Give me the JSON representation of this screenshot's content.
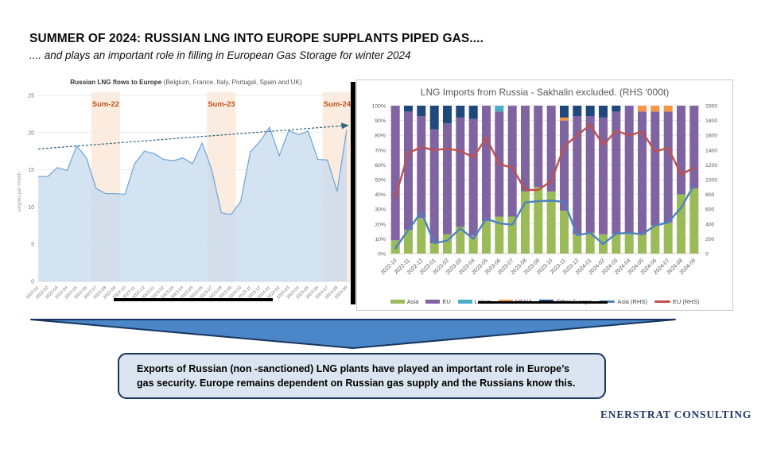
{
  "slide": {
    "title": "SUMMER OF 2024: RUSSIAN LNG INTO EUROPE SUPPLANTS PIPED GAS....",
    "subtitle": ".... and plays an important role in filling in European Gas Storage for winter 2024",
    "callout": "Exports of Russian (non -sanctioned) LNG plants have played an important role in Europe’s gas security. Europe remains dependent on Russian gas supply and the Russians know this.",
    "brand": "ENERSTRAT CONSULTING"
  },
  "colors": {
    "band": "#fcecdf",
    "band_label": "#c0531f",
    "area_fill": "#c6daee",
    "area_line": "#74a9d8",
    "trend": "#33667f",
    "arrow_fill": "#4a86c8",
    "arrow_border": "#17365d",
    "callout_fill": "#dbe5f1",
    "callout_border": "#17365d",
    "brand_text": "#1f3864"
  },
  "chart_data": [
    {
      "type": "area",
      "title_bold": "Russian LNG flows to Europe",
      "title_rest": " (Belgium, France, Italy, Portugal, Spain and UK)",
      "ylabel": "cargoes per month",
      "ylim": [
        0,
        25
      ],
      "yticks": [
        0,
        5,
        10,
        15,
        20,
        25
      ],
      "categories": [
        "2022-01",
        "2022-02",
        "2022-03",
        "2022-04",
        "2022-05",
        "2022-06",
        "2022-07",
        "2022-08",
        "2022-09",
        "2022-10",
        "2022-11",
        "2022-12",
        "2023-01",
        "2023-02",
        "2023-03",
        "2023-04",
        "2023-05",
        "2023-06",
        "2023-07",
        "2023-08",
        "2023-09",
        "2023-10",
        "2023-11",
        "2023-12",
        "2024-01",
        "2024-02",
        "2024-03",
        "2024-04",
        "2024-05",
        "2024-06",
        "2024-07",
        "2024-08",
        "2024-09"
      ],
      "values": [
        14.1,
        14.1,
        15.3,
        14.9,
        18.2,
        16.6,
        12.5,
        11.8,
        11.8,
        11.7,
        15.8,
        17.5,
        17.2,
        16.4,
        16.2,
        16.6,
        15.8,
        18.6,
        15.0,
        9.2,
        9.0,
        10.7,
        17.4,
        18.8,
        20.7,
        16.9,
        20.3,
        19.7,
        20.2,
        16.4,
        16.3,
        12.1,
        20.4
      ],
      "bands": [
        {
          "label": "Sum-22",
          "from": "2022-07",
          "to": "2022-09"
        },
        {
          "label": "Sum-23",
          "from": "2023-07",
          "to": "2023-09"
        },
        {
          "label": "Sum-24",
          "from": "2024-07",
          "to": "2024-09"
        }
      ],
      "trend": {
        "start_value": 17.8,
        "end_value": 20.9
      }
    },
    {
      "type": "stacked-bar-line",
      "title": "LNG Imports from Russia - Sakhalin excluded. (RHS '000t)",
      "ylim_left_pct": [
        0,
        100
      ],
      "yticks_left_pct": [
        0,
        10,
        20,
        30,
        40,
        50,
        60,
        70,
        80,
        90,
        100
      ],
      "ylim_right": [
        0,
        2000
      ],
      "yticks_right": [
        0,
        200,
        400,
        600,
        800,
        1000,
        1200,
        1400,
        1600,
        1800,
        2000
      ],
      "categories": [
        "2022-10",
        "2022-11",
        "2022-12",
        "2023-01",
        "2023-02",
        "2023-03",
        "2023-04",
        "2023-05",
        "2023-06",
        "2023-07",
        "2023-08",
        "2023-09",
        "2023-10",
        "2023-11",
        "2023-12",
        "2024-01",
        "2024-02",
        "2024-03",
        "2024-04",
        "2024-05",
        "2024-06",
        "2024-07",
        "2024-08",
        "2024-09"
      ],
      "series": [
        {
          "name": "Asia",
          "color": "#9BBB59",
          "values": [
            9,
            16,
            24,
            7,
            13,
            18,
            12,
            22,
            25,
            25,
            42,
            45,
            42,
            29,
            13,
            14,
            13,
            13,
            14,
            13,
            19,
            21,
            40,
            44
          ]
        },
        {
          "name": "EU",
          "color": "#8064A2",
          "values": [
            91,
            80,
            69,
            77,
            75,
            74,
            79,
            78,
            71,
            75,
            58,
            55,
            58,
            61,
            80,
            79,
            79,
            83,
            86,
            83,
            77,
            75,
            60,
            56
          ]
        },
        {
          "name": "Latam",
          "color": "#4BACC6",
          "values": [
            0,
            0,
            0,
            0,
            0,
            0,
            0,
            0,
            4,
            0,
            0,
            0,
            0,
            0,
            0,
            0,
            0,
            0,
            0,
            0,
            0,
            0,
            0,
            0
          ]
        },
        {
          "name": "MENA",
          "color": "#F79646",
          "values": [
            0,
            0,
            0,
            0,
            0,
            0,
            0,
            0,
            0,
            0,
            0,
            0,
            0,
            2,
            0,
            0,
            0,
            0,
            0,
            4,
            4,
            4,
            0,
            0
          ]
        },
        {
          "name": "Other Europe",
          "color": "#1F497D",
          "values": [
            0,
            4,
            7,
            16,
            12,
            8,
            9,
            0,
            0,
            0,
            0,
            0,
            0,
            8,
            7,
            7,
            8,
            4,
            0,
            0,
            0,
            0,
            0,
            0
          ]
        }
      ],
      "lines": [
        {
          "name": "Asia (RHS)",
          "color": "#4F81BD",
          "values": [
            70,
            320,
            560,
            140,
            175,
            340,
            200,
            470,
            410,
            390,
            690,
            710,
            715,
            700,
            250,
            280,
            130,
            270,
            280,
            260,
            380,
            420,
            620,
            930
          ]
        },
        {
          "name": "EU (RHS)",
          "color": "#C0504D",
          "values": [
            760,
            1360,
            1440,
            1400,
            1420,
            1390,
            1300,
            1570,
            1210,
            1160,
            860,
            860,
            980,
            1450,
            1600,
            1740,
            1470,
            1660,
            1600,
            1650,
            1380,
            1430,
            1070,
            1160
          ]
        }
      ],
      "legend": [
        {
          "label": "Asia",
          "color": "#9BBB59",
          "kind": "box"
        },
        {
          "label": "EU",
          "color": "#8064A2",
          "kind": "box"
        },
        {
          "label": "Latam",
          "color": "#4BACC6",
          "kind": "box"
        },
        {
          "label": "MENA",
          "color": "#F79646",
          "kind": "box"
        },
        {
          "label": "Other Europe",
          "color": "#1F497D",
          "kind": "box"
        },
        {
          "label": "Asia (RHS)",
          "color": "#4F81BD",
          "kind": "line"
        },
        {
          "label": "EU (RHS)",
          "color": "#C0504D",
          "kind": "line"
        }
      ]
    }
  ]
}
